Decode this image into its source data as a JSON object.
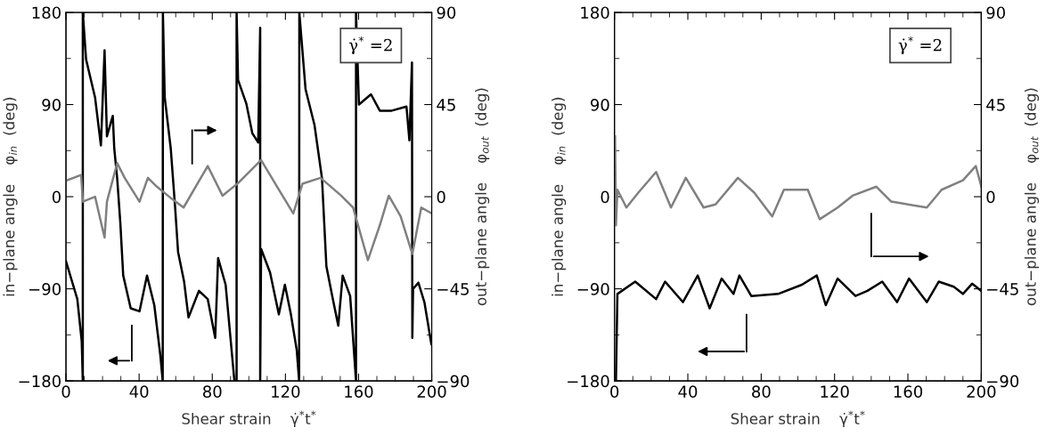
{
  "chart_data": [
    {
      "type": "line",
      "xlabel": "Shear strain    γ̇$^{*}$t$^{*}$",
      "ylabel": "in−plane angle    φ$_{in}$  (deg)",
      "y2label": "out−plane angle    φ$_{out}$  (deg)",
      "annotations": [
        "γ̇$^{*}$ =2"
      ],
      "xlim": [
        0,
        200
      ],
      "xticks": [
        0,
        40,
        80,
        120,
        160,
        200
      ],
      "ylim": [
        -180,
        180
      ],
      "yticks": [
        -180,
        -90,
        0,
        90,
        180
      ],
      "y2lim": [
        -90,
        90
      ],
      "y2ticks": [
        -90,
        -45,
        0,
        45,
        90
      ],
      "grid": false,
      "legend": false,
      "line_style": "solid",
      "marker": "none",
      "series": [
        {
          "color": "#000000",
          "x": [
            0,
            6.2,
            8.6,
            9.2,
            9.2,
            11,
            15.9,
            19.1,
            21.1,
            22.4,
            25.6,
            26.4,
            28,
            29.7,
            31.3,
            35.4,
            40.2,
            44.3,
            48.3,
            51.6,
            52.9,
            53,
            54,
            57.3,
            59.7,
            61.3,
            64.6,
            67,
            72.7,
            77.5,
            81.6,
            83.2,
            87.3,
            92.1,
            93.3,
            93.3,
            94.1,
            98.6,
            101.9,
            105.1,
            106.2,
            106.2,
            106.7,
            111.6,
            116.4,
            119.7,
            123,
            126.2,
            127.5,
            127.6,
            131,
            135.9,
            140,
            142.4,
            145.6,
            148.9,
            151.3,
            155.4,
            158.6,
            158.6,
            160.2,
            166.8,
            171.6,
            178.1,
            186.2,
            187.8,
            189.2,
            189.4,
            189.8,
            192.7,
            196,
            199.8
          ],
          "values": [
            -63,
            -100,
            -141,
            -180,
            180,
            134,
            97,
            50,
            143,
            59,
            79,
            47,
            18,
            -25,
            -77,
            -109,
            -112,
            -77,
            -106,
            -155,
            -180,
            180,
            97,
            47,
            -11,
            -54,
            -83,
            -118,
            -92,
            -100,
            -138,
            -60,
            -86,
            -180,
            -180,
            180,
            114,
            91,
            62,
            53,
            165,
            -180,
            -51,
            -74,
            -115,
            -86,
            -115,
            -150,
            -180,
            180,
            105,
            70,
            18,
            -68,
            -97,
            -126,
            -77,
            -97,
            -180,
            180,
            90,
            100,
            84,
            84,
            88,
            55,
            131,
            -138,
            -90,
            -84,
            -103,
            -144
          ]
        },
        {
          "color": "#808080",
          "axis": "y2",
          "x": [
            0,
            8.3,
            9.2,
            15.9,
            21.1,
            22.4,
            28,
            32.1,
            40.2,
            44.8,
            49.7,
            57.8,
            64.3,
            77.5,
            85.6,
            93.7,
            106.7,
            116.4,
            124.3,
            129.3,
            139.2,
            150.5,
            157,
            165.1,
            171.6,
            176.5,
            183,
            189.4,
            194.3,
            200
          ],
          "values": [
            7.8,
            10.6,
            -2.4,
            0,
            -20,
            -2.4,
            16.4,
            9.2,
            -2.4,
            9.2,
            4.9,
            -1,
            -5.3,
            15,
            0.5,
            6.3,
            17.9,
            3.4,
            -8.2,
            6.3,
            9.2,
            0.5,
            -5.3,
            -31,
            -14,
            0.5,
            -9.6,
            -28,
            -5.3,
            -8.2
          ]
        }
      ]
    },
    {
      "type": "line",
      "xlabel": "Shear strain    γ̇$^{*}$t$^{*}$",
      "ylabel": "in−plane angle    φ$_{in}$  (deg)",
      "y2label": "out−plane angle    φ$_{out}$  (deg)",
      "annotations": [
        "γ̇$^{*}$ =2"
      ],
      "xlim": [
        0,
        200
      ],
      "xticks": [
        0,
        40,
        80,
        120,
        160,
        200
      ],
      "ylim": [
        -180,
        180
      ],
      "yticks": [
        -180,
        -90,
        0,
        90,
        180
      ],
      "y2lim": [
        -90,
        90
      ],
      "y2ticks": [
        -90,
        -45,
        0,
        45,
        90
      ],
      "grid": false,
      "legend": false,
      "line_style": "solid",
      "marker": "none",
      "series": [
        {
          "color": "#000000",
          "x": [
            0.8,
            1.6,
            11.3,
            22.7,
            27.6,
            37.3,
            45.4,
            51.9,
            58.4,
            64.9,
            68.1,
            74.6,
            89.2,
            102.2,
            110.3,
            115.2,
            121.7,
            131.4,
            137.9,
            146,
            154.1,
            160.6,
            170.3,
            176.8,
            185,
            190,
            195,
            200
          ],
          "values": [
            -180,
            -95,
            -83,
            -100,
            -83,
            -103,
            -77,
            -109,
            -80,
            -95,
            -77,
            -97,
            -95,
            -86,
            -77,
            -106,
            -80,
            -97,
            -92,
            -83,
            -103,
            -80,
            -103,
            -83,
            -88,
            -95,
            -85,
            -92
          ]
        },
        {
          "color": "#808080",
          "axis": "y2",
          "x": [
            0.3,
            0.8,
            1.6,
            6.5,
            13,
            22.7,
            30.8,
            38.9,
            48.6,
            55.1,
            67.3,
            76.2,
            86,
            92.4,
            105.4,
            111.9,
            121.7,
            129.8,
            142.8,
            150.9,
            170.3,
            178.4,
            190,
            197,
            200
          ],
          "values": [
            29.5,
            -14,
            3.4,
            -5.3,
            2,
            12.1,
            -5.3,
            9.2,
            -5.3,
            -3.8,
            9.2,
            2,
            -9.6,
            3.4,
            3.4,
            -11,
            -5.3,
            0.5,
            4.9,
            -2.4,
            -5.3,
            3.4,
            8,
            15,
            5
          ]
        }
      ]
    }
  ]
}
